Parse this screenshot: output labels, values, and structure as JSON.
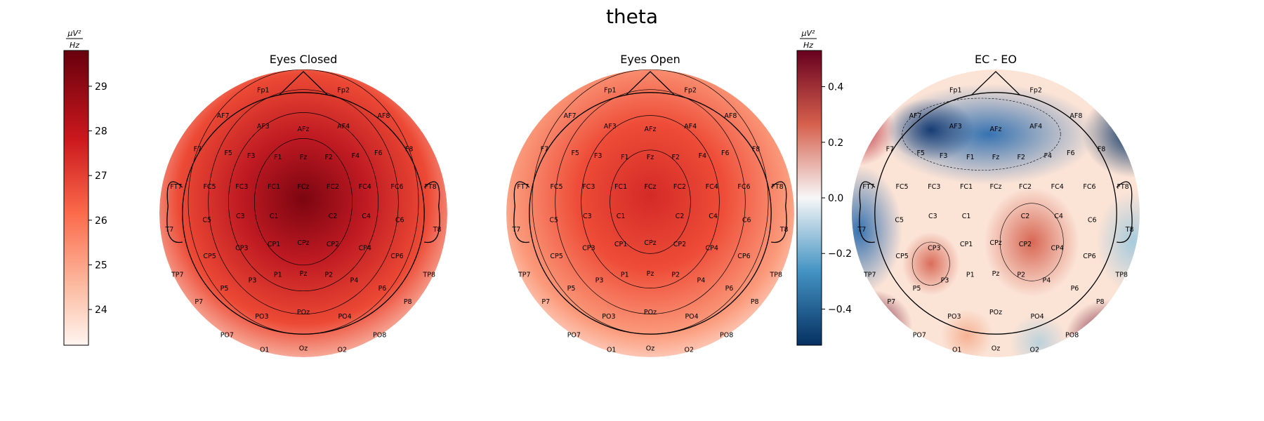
{
  "figure": {
    "title": "theta",
    "colorbar_unit_numerator": "μV²",
    "colorbar_unit_denominator": "Hz"
  },
  "chart_data": [
    {
      "type": "heatmap",
      "subtype": "topomap",
      "title": "Eyes Closed",
      "colormap": "Reds",
      "clim": [
        23.2,
        29.8
      ],
      "colorbar_ticks": [
        24,
        25,
        26,
        27,
        28,
        29
      ],
      "colorbar_tick_labels": [
        "24",
        "25",
        "26",
        "27",
        "28",
        "29"
      ]
    },
    {
      "type": "heatmap",
      "subtype": "topomap",
      "title": "Eyes Open",
      "colormap": "Reds",
      "clim": [
        23.2,
        29.8
      ],
      "shares_colorbar_with": "Eyes Closed"
    },
    {
      "type": "heatmap",
      "subtype": "topomap",
      "title": "EC - EO",
      "colormap": "RdBu_r",
      "clim": [
        -0.53,
        0.53
      ],
      "colorbar_ticks": [
        0.4,
        0.2,
        0.0,
        -0.2,
        -0.4
      ],
      "colorbar_tick_labels": [
        "0.4",
        "0.2",
        "0.0",
        "−0.2",
        "−0.4"
      ]
    }
  ],
  "channels": [
    "Fp1",
    "Fp2",
    "AF7",
    "AF3",
    "AFz",
    "AF4",
    "AF8",
    "F7",
    "F5",
    "F3",
    "F1",
    "Fz",
    "F2",
    "F4",
    "F6",
    "F8",
    "FT7",
    "FC5",
    "FC3",
    "FC1",
    "FCz",
    "FC2",
    "FC4",
    "FC6",
    "FT8",
    "T7",
    "C5",
    "C3",
    "C1",
    "C2",
    "C4",
    "C6",
    "T8",
    "TP7",
    "CP5",
    "CP3",
    "CP1",
    "CPz",
    "CP2",
    "CP4",
    "CP6",
    "TP8",
    "P7",
    "P5",
    "P3",
    "P1",
    "Pz",
    "P2",
    "P4",
    "P6",
    "P8",
    "PO7",
    "PO3",
    "POz",
    "PO4",
    "PO8",
    "O1",
    "Oz",
    "O2"
  ],
  "colors": {
    "reds_low": "#fff5f0",
    "reds_mid": "#f34a36",
    "reds_high": "#67000d",
    "rdbu_neg": "#053061",
    "rdbu_zero": "#f7f7f7",
    "rdbu_pos": "#67001f"
  }
}
